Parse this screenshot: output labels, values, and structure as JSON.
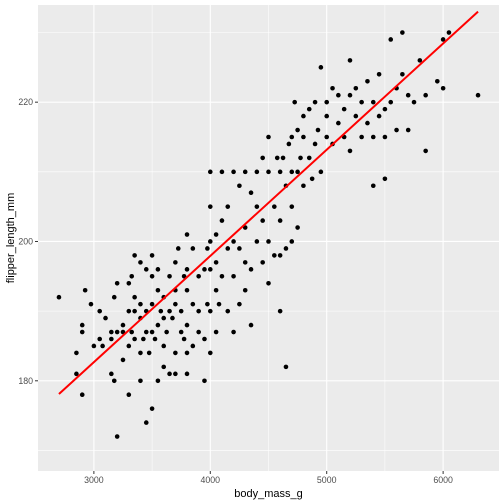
{
  "chart_data": {
    "type": "scatter",
    "xlabel": "body_mass_g",
    "ylabel": "flipper_length_mm",
    "xlim": [
      2520,
      6480
    ],
    "ylim": [
      167.05,
      233.95
    ],
    "x_ticks": [
      3000,
      4000,
      5000,
      6000
    ],
    "x_tick_labels": [
      "3000",
      "4000",
      "5000",
      "6000"
    ],
    "y_ticks": [
      180,
      200,
      220
    ],
    "y_tick_labels": [
      "180",
      "200",
      "220"
    ],
    "grid": true,
    "legend": "none",
    "colors": {
      "panel": "#ebebeb",
      "grid_major": "#ffffff",
      "points": "#000000",
      "trend_line": "#ff0000",
      "tick_text": "#4d4d4d"
    },
    "trend_line": {
      "x": [
        2700,
        6300
      ],
      "y": [
        178.1,
        233.0
      ]
    },
    "points": [
      [
        2700,
        192
      ],
      [
        2850,
        184
      ],
      [
        2850,
        181
      ],
      [
        2900,
        187
      ],
      [
        2900,
        188
      ],
      [
        2900,
        178
      ],
      [
        2925,
        193
      ],
      [
        2975,
        191
      ],
      [
        3000,
        185
      ],
      [
        3050,
        186
      ],
      [
        3050,
        190
      ],
      [
        3075,
        185
      ],
      [
        3100,
        189
      ],
      [
        3150,
        186
      ],
      [
        3150,
        187
      ],
      [
        3150,
        181
      ],
      [
        3175,
        180
      ],
      [
        3175,
        192
      ],
      [
        3200,
        172
      ],
      [
        3200,
        187
      ],
      [
        3200,
        194
      ],
      [
        3250,
        183
      ],
      [
        3250,
        188
      ],
      [
        3250,
        187
      ],
      [
        3300,
        178
      ],
      [
        3300,
        190
      ],
      [
        3300,
        185
      ],
      [
        3300,
        194
      ],
      [
        3325,
        187
      ],
      [
        3325,
        195
      ],
      [
        3350,
        186
      ],
      [
        3350,
        190
      ],
      [
        3350,
        192
      ],
      [
        3350,
        198
      ],
      [
        3400,
        180
      ],
      [
        3400,
        184
      ],
      [
        3400,
        189
      ],
      [
        3400,
        191
      ],
      [
        3400,
        197
      ],
      [
        3425,
        186
      ],
      [
        3450,
        174
      ],
      [
        3450,
        187
      ],
      [
        3450,
        190
      ],
      [
        3450,
        196
      ],
      [
        3475,
        184
      ],
      [
        3500,
        176
      ],
      [
        3500,
        187
      ],
      [
        3500,
        191
      ],
      [
        3500,
        195
      ],
      [
        3500,
        198
      ],
      [
        3525,
        186
      ],
      [
        3550,
        180
      ],
      [
        3550,
        188
      ],
      [
        3550,
        193
      ],
      [
        3550,
        196
      ],
      [
        3575,
        190
      ],
      [
        3600,
        182
      ],
      [
        3600,
        185
      ],
      [
        3600,
        189
      ],
      [
        3600,
        192
      ],
      [
        3625,
        187
      ],
      [
        3650,
        181
      ],
      [
        3650,
        190
      ],
      [
        3650,
        195
      ],
      [
        3675,
        189
      ],
      [
        3700,
        181
      ],
      [
        3700,
        184
      ],
      [
        3700,
        191
      ],
      [
        3700,
        193
      ],
      [
        3700,
        197
      ],
      [
        3725,
        199
      ],
      [
        3750,
        190
      ],
      [
        3750,
        187
      ],
      [
        3775,
        195
      ],
      [
        3775,
        186
      ],
      [
        3800,
        181
      ],
      [
        3800,
        184
      ],
      [
        3800,
        188
      ],
      [
        3800,
        193
      ],
      [
        3800,
        196
      ],
      [
        3800,
        201
      ],
      [
        3850,
        185
      ],
      [
        3850,
        191
      ],
      [
        3850,
        199
      ],
      [
        3900,
        187
      ],
      [
        3900,
        190
      ],
      [
        3900,
        195
      ],
      [
        3950,
        180
      ],
      [
        3950,
        186
      ],
      [
        3950,
        196
      ],
      [
        3975,
        191
      ],
      [
        3975,
        199
      ],
      [
        4000,
        184
      ],
      [
        4000,
        190
      ],
      [
        4000,
        196
      ],
      [
        4000,
        200
      ],
      [
        4000,
        205
      ],
      [
        4000,
        210
      ],
      [
        4050,
        187
      ],
      [
        4050,
        193
      ],
      [
        4050,
        197
      ],
      [
        4050,
        201
      ],
      [
        4075,
        191
      ],
      [
        4100,
        195
      ],
      [
        4100,
        203
      ],
      [
        4100,
        210
      ],
      [
        4150,
        190
      ],
      [
        4150,
        199
      ],
      [
        4150,
        205
      ],
      [
        4200,
        187
      ],
      [
        4200,
        195
      ],
      [
        4200,
        200
      ],
      [
        4200,
        210
      ],
      [
        4250,
        191
      ],
      [
        4250,
        199
      ],
      [
        4250,
        208
      ],
      [
        4300,
        193
      ],
      [
        4300,
        197
      ],
      [
        4300,
        202
      ],
      [
        4300,
        210
      ],
      [
        4350,
        188
      ],
      [
        4350,
        196
      ],
      [
        4350,
        207
      ],
      [
        4400,
        200
      ],
      [
        4400,
        205
      ],
      [
        4400,
        210
      ],
      [
        4450,
        197
      ],
      [
        4450,
        203
      ],
      [
        4450,
        212
      ],
      [
        4500,
        194
      ],
      [
        4500,
        200
      ],
      [
        4500,
        210
      ],
      [
        4500,
        215
      ],
      [
        4550,
        198
      ],
      [
        4550,
        205
      ],
      [
        4575,
        212
      ],
      [
        4600,
        190
      ],
      [
        4600,
        198
      ],
      [
        4600,
        203
      ],
      [
        4600,
        210
      ],
      [
        4625,
        212
      ],
      [
        4650,
        182
      ],
      [
        4650,
        199
      ],
      [
        4650,
        208
      ],
      [
        4675,
        214
      ],
      [
        4700,
        200
      ],
      [
        4700,
        205
      ],
      [
        4700,
        210
      ],
      [
        4700,
        215
      ],
      [
        4725,
        220
      ],
      [
        4750,
        202
      ],
      [
        4750,
        210
      ],
      [
        4750,
        216
      ],
      [
        4775,
        212
      ],
      [
        4800,
        208
      ],
      [
        4800,
        215
      ],
      [
        4800,
        218
      ],
      [
        4850,
        212
      ],
      [
        4850,
        219
      ],
      [
        4875,
        209
      ],
      [
        4900,
        214
      ],
      [
        4900,
        220
      ],
      [
        4925,
        216
      ],
      [
        4950,
        210
      ],
      [
        4950,
        225
      ],
      [
        5000,
        215
      ],
      [
        5000,
        218
      ],
      [
        5000,
        220
      ],
      [
        5050,
        214
      ],
      [
        5050,
        222
      ],
      [
        5100,
        217
      ],
      [
        5100,
        221
      ],
      [
        5150,
        215
      ],
      [
        5150,
        219
      ],
      [
        5200,
        213
      ],
      [
        5200,
        221
      ],
      [
        5200,
        226
      ],
      [
        5250,
        218
      ],
      [
        5250,
        222
      ],
      [
        5300,
        215
      ],
      [
        5300,
        220
      ],
      [
        5350,
        217
      ],
      [
        5350,
        223
      ],
      [
        5400,
        208
      ],
      [
        5400,
        215
      ],
      [
        5400,
        220
      ],
      [
        5450,
        218
      ],
      [
        5450,
        224
      ],
      [
        5500,
        209
      ],
      [
        5500,
        215
      ],
      [
        5500,
        219
      ],
      [
        5550,
        220
      ],
      [
        5550,
        229
      ],
      [
        5600,
        216
      ],
      [
        5600,
        222
      ],
      [
        5650,
        224
      ],
      [
        5650,
        230
      ],
      [
        5700,
        216
      ],
      [
        5700,
        221
      ],
      [
        5750,
        220
      ],
      [
        5800,
        226
      ],
      [
        5850,
        213
      ],
      [
        5850,
        221
      ],
      [
        5950,
        223
      ],
      [
        6000,
        222
      ],
      [
        6000,
        229
      ],
      [
        6050,
        230
      ],
      [
        6300,
        221
      ]
    ]
  }
}
